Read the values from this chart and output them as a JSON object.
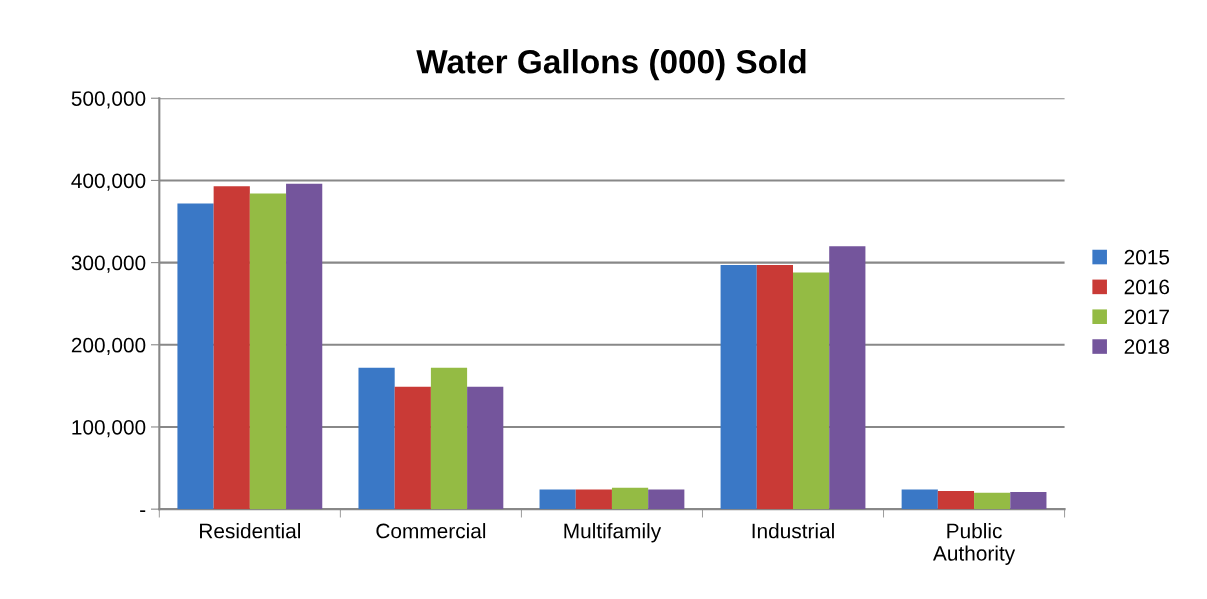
{
  "chart_data": {
    "type": "bar",
    "title": "Water Gallons (000) Sold",
    "categories": [
      "Residential",
      "Commercial",
      "Multifamily",
      "Industrial",
      "Public\nAuthority"
    ],
    "series": [
      {
        "name": "2015",
        "color": "#3a78c6",
        "values": [
          372000,
          172000,
          24000,
          297000,
          24000
        ]
      },
      {
        "name": "2016",
        "color": "#c93a36",
        "values": [
          393000,
          149000,
          24000,
          297000,
          22000
        ]
      },
      {
        "name": "2017",
        "color": "#94bb44",
        "values": [
          384000,
          172000,
          26000,
          288000,
          20000
        ]
      },
      {
        "name": "2018",
        "color": "#74559c",
        "values": [
          396000,
          149000,
          24000,
          320000,
          21000
        ]
      }
    ],
    "ylim": [
      0,
      500000
    ],
    "yticks": [
      {
        "value": 0,
        "label": "-"
      },
      {
        "value": 100000,
        "label": "100,000"
      },
      {
        "value": 200000,
        "label": "200,000"
      },
      {
        "value": 300000,
        "label": "300,000"
      },
      {
        "value": 400000,
        "label": "400,000"
      },
      {
        "value": 500000,
        "label": "500,000"
      }
    ],
    "grid": "y",
    "legend": "right"
  }
}
